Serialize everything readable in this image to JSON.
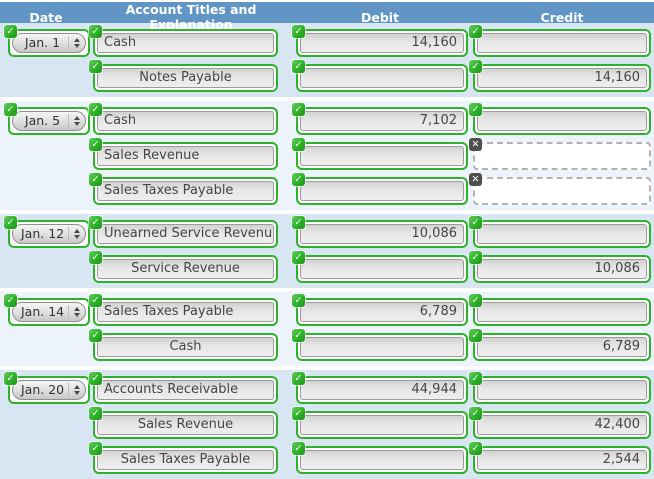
{
  "header": {
    "date": "Date",
    "account": "Account Titles and Explanation",
    "debit": "Debit",
    "credit": "Credit"
  },
  "icons": {
    "check": "✓",
    "error": "✕",
    "select_arrows": "up-down-triangles"
  },
  "colors": {
    "header_bg": "#6095c5",
    "band_dark": "#d8e6f4",
    "band_light": "#ecf3fa",
    "valid_green": "#2eb229",
    "error_badge_gray": "#4f4f4f",
    "field_fill": "#e7e7e7"
  },
  "rows": [
    {
      "date": "Jan. 1",
      "account": "Cash",
      "debit": "14,160",
      "credit": "",
      "debit_status": "valid",
      "credit_status": "valid"
    },
    {
      "account": "Notes Payable",
      "debit": "",
      "credit": "14,160",
      "debit_status": "valid",
      "credit_status": "valid"
    },
    {
      "date": "Jan. 5",
      "account": "Cash",
      "debit": "7,102",
      "credit": "",
      "debit_status": "valid",
      "credit_status": "valid"
    },
    {
      "account": "Sales Revenue",
      "debit": "",
      "credit": "",
      "debit_status": "valid",
      "credit_status": "error"
    },
    {
      "account": "Sales Taxes Payable",
      "debit": "",
      "credit": "",
      "debit_status": "valid",
      "credit_status": "error"
    },
    {
      "date": "Jan. 12",
      "account": "Unearned Service Revenue",
      "debit": "10,086",
      "credit": "",
      "debit_status": "valid",
      "credit_status": "valid"
    },
    {
      "account": "Service Revenue",
      "debit": "",
      "credit": "10,086",
      "debit_status": "valid",
      "credit_status": "valid"
    },
    {
      "date": "Jan. 14",
      "account": "Sales Taxes Payable",
      "debit": "6,789",
      "credit": "",
      "debit_status": "valid",
      "credit_status": "valid"
    },
    {
      "account": "Cash",
      "debit": "",
      "credit": "6,789",
      "debit_status": "valid",
      "credit_status": "valid"
    },
    {
      "date": "Jan. 20",
      "account": "Accounts Receivable",
      "debit": "44,944",
      "credit": "",
      "debit_status": "valid",
      "credit_status": "valid"
    },
    {
      "account": "Sales Revenue",
      "debit": "",
      "credit": "42,400",
      "debit_status": "valid",
      "credit_status": "valid"
    },
    {
      "account": "Sales Taxes Payable",
      "debit": "",
      "credit": "2,544",
      "debit_status": "valid",
      "credit_status": "valid"
    }
  ]
}
